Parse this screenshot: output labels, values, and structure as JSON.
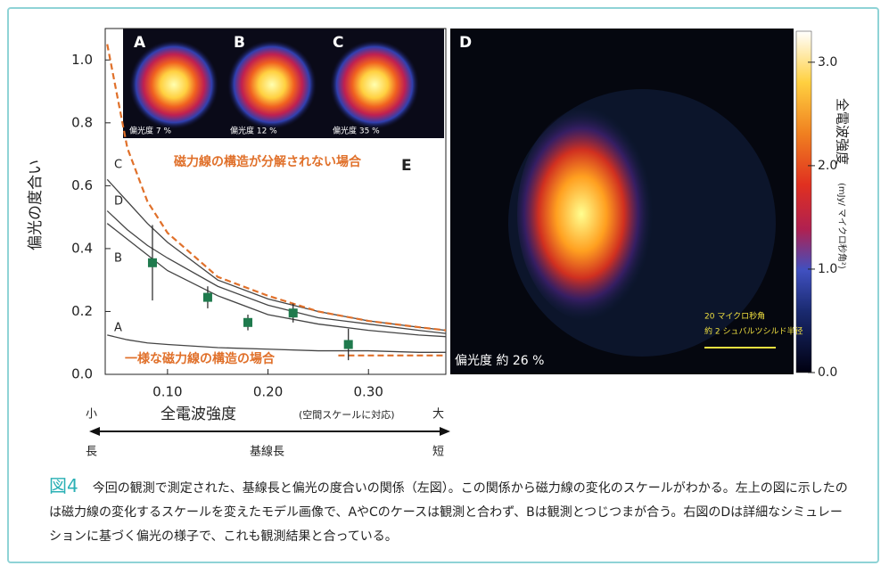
{
  "chart_data": [
    {
      "type": "line",
      "panel_label": "E",
      "ylabel": "偏光の度合い",
      "xlabel": "全電波強度",
      "xlabel_note": "(空間スケールに対応)",
      "x_ends": [
        "小",
        "大"
      ],
      "baseline": {
        "label": "基線長",
        "ends": [
          "長",
          "短"
        ]
      },
      "x": [
        0.04,
        0.06,
        0.08,
        0.1,
        0.15,
        0.2,
        0.25,
        0.3,
        0.35,
        0.377
      ],
      "series": [
        {
          "name": "C",
          "color": "#444444",
          "values": [
            0.62,
            0.55,
            0.48,
            0.42,
            0.3,
            0.24,
            0.2,
            0.17,
            0.15,
            0.14
          ]
        },
        {
          "name": "D",
          "color": "#444444",
          "values": [
            0.52,
            0.46,
            0.41,
            0.37,
            0.28,
            0.22,
            0.18,
            0.16,
            0.14,
            0.13
          ]
        },
        {
          "name": "B",
          "color": "#444444",
          "values": [
            0.48,
            0.43,
            0.38,
            0.33,
            0.25,
            0.19,
            0.16,
            0.14,
            0.125,
            0.12
          ]
        },
        {
          "name": "A",
          "color": "#444444",
          "values": [
            0.125,
            0.11,
            0.1,
            0.095,
            0.085,
            0.08,
            0.075,
            0.075,
            0.07,
            0.07
          ]
        },
        {
          "name": "磁力線の構造が分解されない場合",
          "color": "#e0702a",
          "dashed": true,
          "values": [
            1.05,
            0.72,
            0.55,
            0.45,
            0.31,
            0.25,
            0.2,
            0.17,
            0.15,
            0.14
          ]
        },
        {
          "name": "一様な磁力線の構造の場合",
          "color": "#e0702a",
          "dashed": true,
          "x": [
            0.27,
            0.377
          ],
          "values": [
            0.06,
            0.06
          ]
        }
      ],
      "measurements": {
        "color": "#1f7a4d",
        "x": [
          0.085,
          0.14,
          0.18,
          0.225,
          0.28
        ],
        "values": [
          0.355,
          0.245,
          0.165,
          0.195,
          0.095
        ],
        "errors": [
          0.12,
          0.035,
          0.025,
          0.03,
          0.05
        ]
      },
      "xlim": [
        0.038,
        0.377
      ],
      "ylim": [
        0,
        1.1
      ],
      "xticks": [
        {
          "value": 0.1,
          "label": "0.10"
        },
        {
          "value": 0.2,
          "label": "0.20"
        },
        {
          "value": 0.3,
          "label": "0.30"
        }
      ],
      "yticks": [
        {
          "value": 0,
          "label": "0.0"
        },
        {
          "value": 0.2,
          "label": "0.2"
        },
        {
          "value": 0.4,
          "label": "0.4"
        },
        {
          "value": 0.6,
          "label": "0.6"
        },
        {
          "value": 0.8,
          "label": "0.8"
        },
        {
          "value": 1,
          "label": "1.0"
        }
      ]
    },
    {
      "type": "heatmap",
      "panel_label": "D",
      "annotation": "偏光度 約 26 %",
      "scale_bar": [
        "20 マイクロ秒角",
        "約 2 シュバルツシルド半径"
      ],
      "colorbar": {
        "label": "全電波強度",
        "unit": "(mJy/ マイクロ秒角²)",
        "lim": [
          0,
          3.3
        ],
        "ticks": [
          {
            "value": 0,
            "label": "0.0"
          },
          {
            "value": 1,
            "label": "1.0"
          },
          {
            "value": 2,
            "label": "2.0"
          },
          {
            "value": 3,
            "label": "3.0"
          }
        ]
      }
    }
  ],
  "insets": [
    {
      "label": "A",
      "polarization": "偏光度 7 %"
    },
    {
      "label": "B",
      "polarization": "偏光度 12 %"
    },
    {
      "label": "C",
      "polarization": "偏光度 35 %"
    }
  ],
  "caption": {
    "figure": "図4",
    "text": "今回の観測で測定された、基線長と偏光の度合いの関係（左図）。この関係から磁力線の変化のスケールがわかる。左上の図に示したのは磁力線の変化するスケールを変えたモデル画像で、AやCのケースは観測と合わず、Bは観測とつじつまが合う。右図のDは詳細なシミュレーションに基づく偏光の様子で、これも観測結果と合っている。"
  }
}
